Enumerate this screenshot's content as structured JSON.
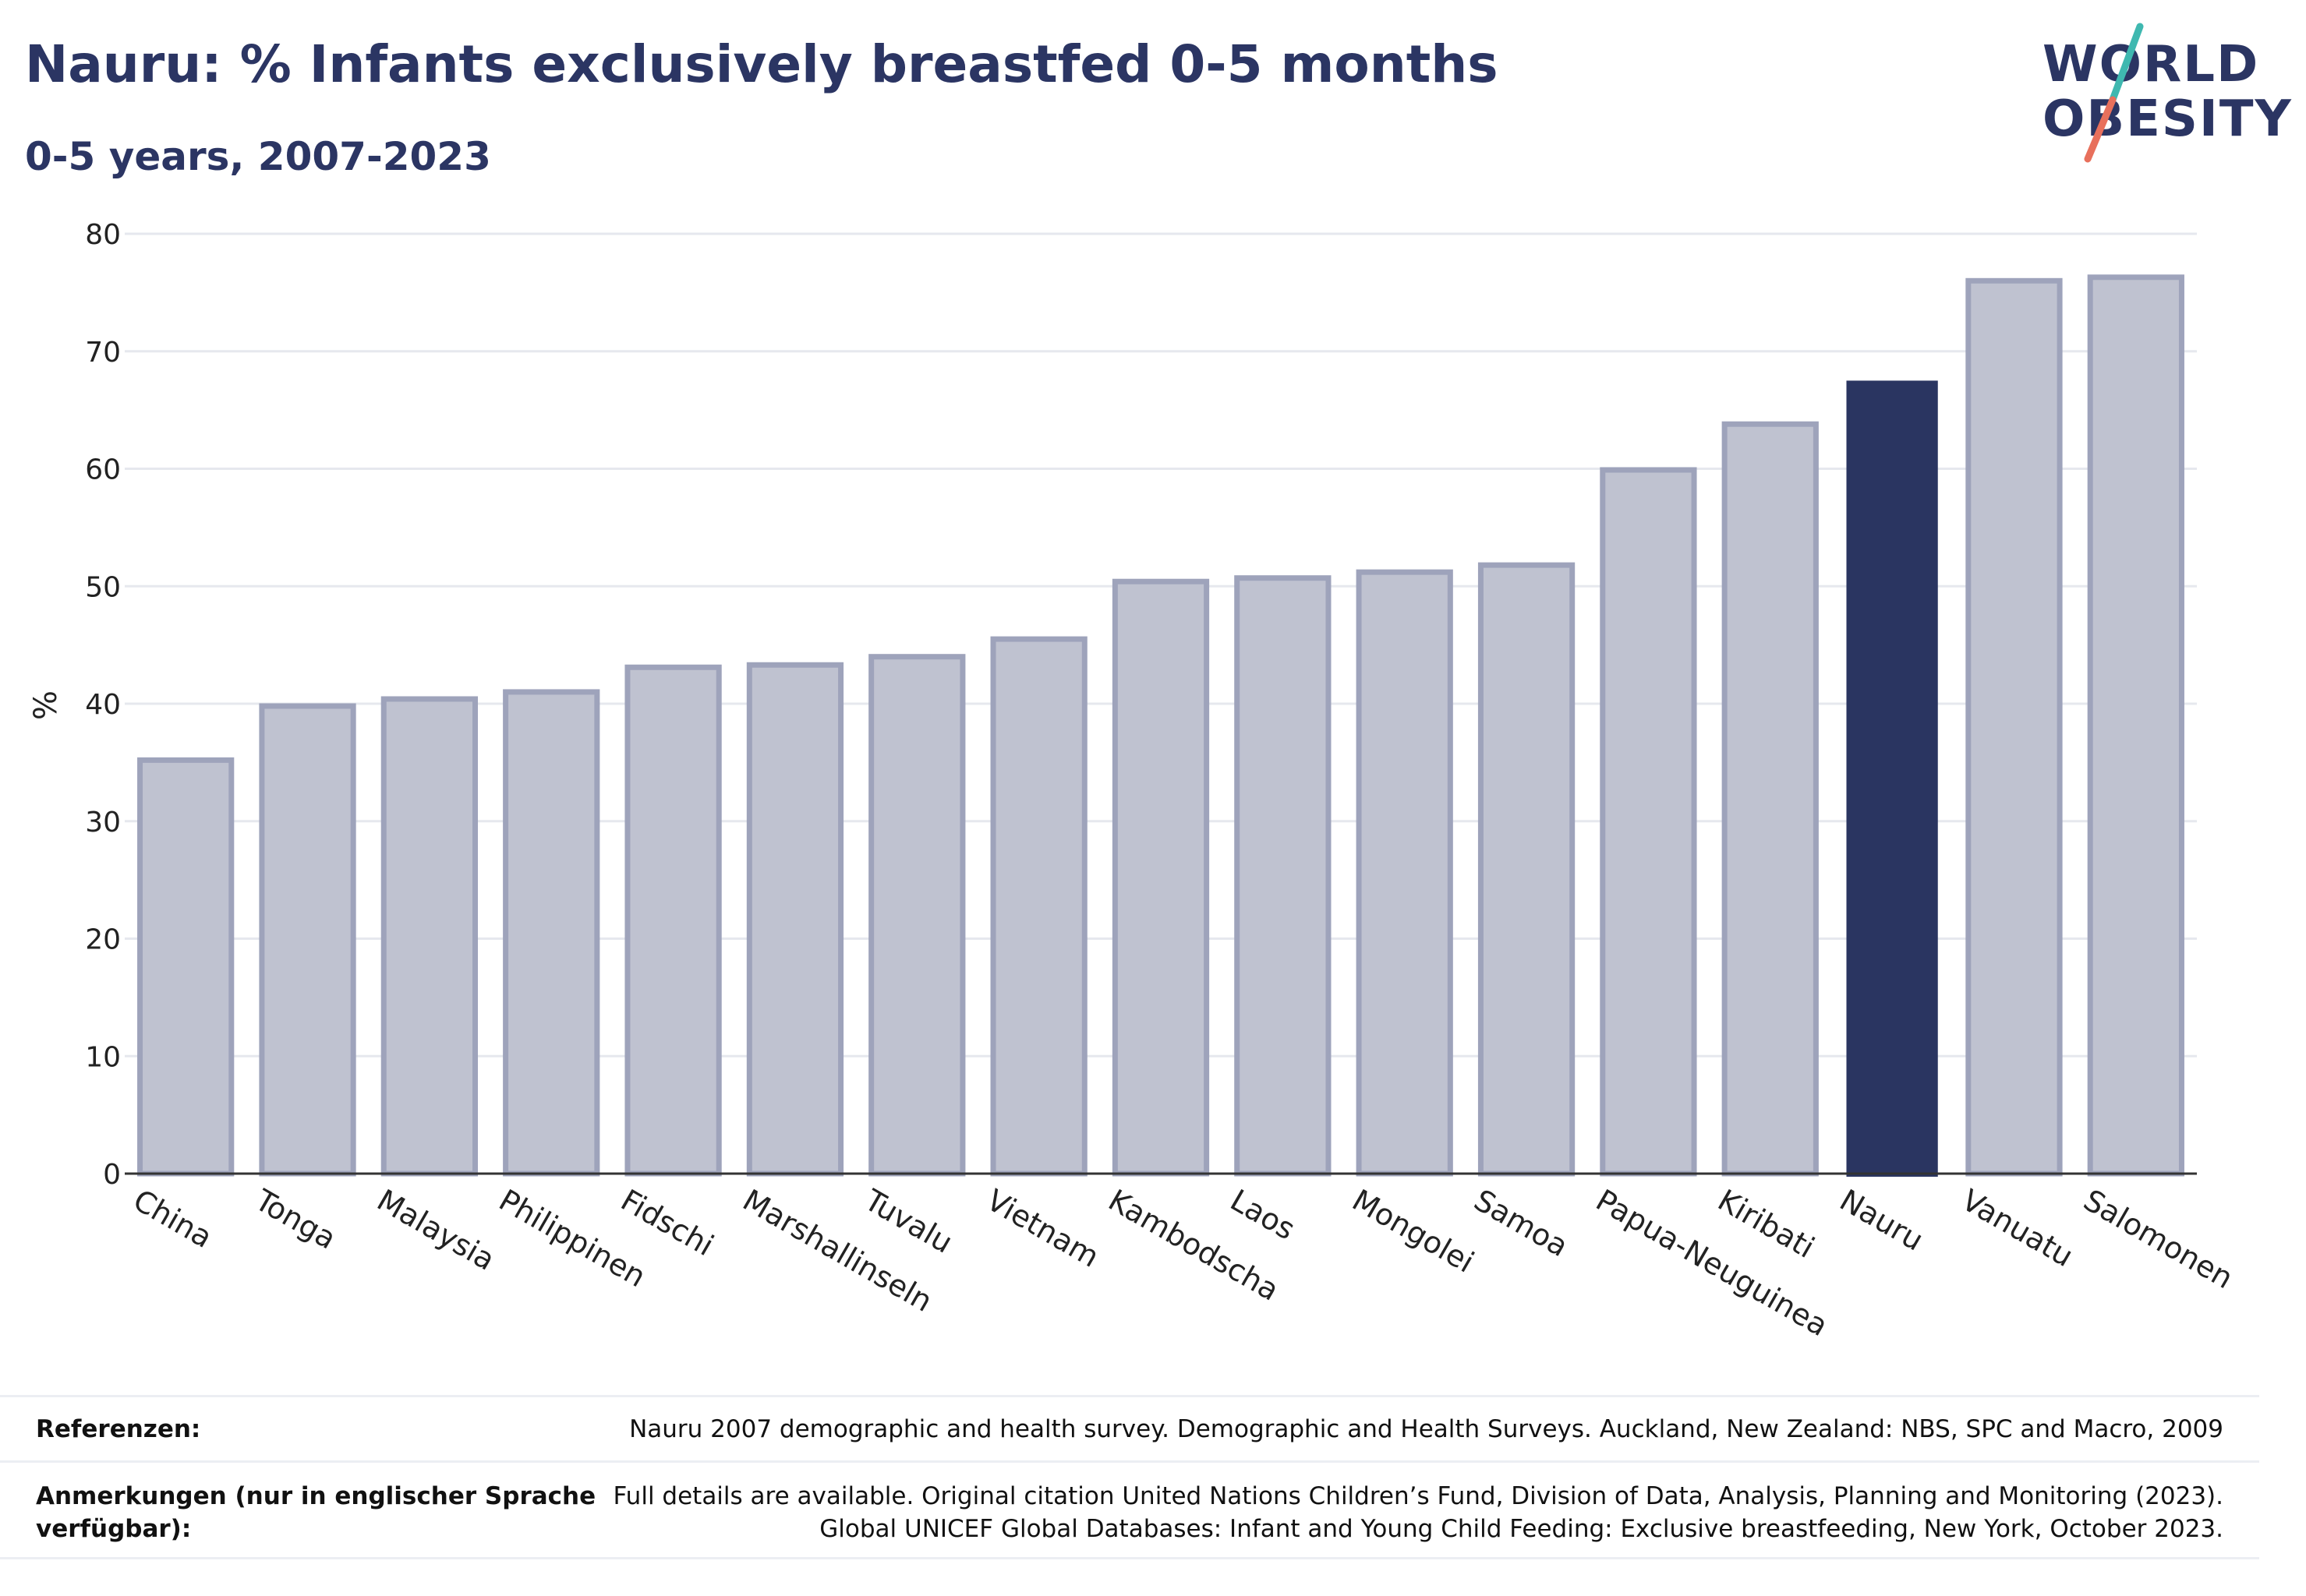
{
  "title": "Nauru: % Infants exclusively breastfed 0-5 months",
  "subtitle": "0-5 years, 2007-2023",
  "logo": {
    "line1": "WORLD",
    "line2": "OBESITY"
  },
  "colors": {
    "highlight": "#2a3561",
    "bar_fill": "#bfc2d0",
    "bar_stroke": "#9ea3bb",
    "grid": "#e6e8ee",
    "logo_teal": "#3fb8b0",
    "logo_coral": "#e8705c"
  },
  "chart_data": {
    "type": "bar",
    "title": "Nauru: % Infants exclusively breastfed 0-5 months",
    "subtitle": "0-5 years, 2007-2023",
    "xlabel": "",
    "ylabel": "%",
    "ylim": [
      0,
      80
    ],
    "yticks": [
      0,
      10,
      20,
      30,
      40,
      50,
      60,
      70,
      80
    ],
    "grid": true,
    "highlight_category": "Nauru",
    "categories": [
      "China",
      "Tonga",
      "Malaysia",
      "Philippinen",
      "Fidschi",
      "Marshallinseln",
      "Tuvalu",
      "Vietnam",
      "Kambodscha",
      "Laos",
      "Mongolei",
      "Samoa",
      "Papua-Neuguinea",
      "Kiribati",
      "Nauru",
      "Vanuatu",
      "Salomonen"
    ],
    "values": [
      35.2,
      39.8,
      40.4,
      41.0,
      43.1,
      43.3,
      44.0,
      45.5,
      50.4,
      50.7,
      51.2,
      51.8,
      59.9,
      63.8,
      67.5,
      76.0,
      76.3
    ]
  },
  "footer": {
    "references_label": "Referenzen:",
    "references_text": "Nauru 2007 demographic and health survey. Demographic and Health Surveys. Auckland, New Zealand: NBS, SPC and Macro, 2009",
    "notes_label": "Anmerkungen (nur in englischer Sprache verfügbar):",
    "notes_text_line1": "Full details are available. Original citation United Nations Children’s Fund, Division of Data, Analysis, Planning and Monitoring (2023).",
    "notes_text_line2": "Global UNICEF Global Databases: Infant and Young Child Feeding: Exclusive breastfeeding, New York, October 2023."
  }
}
